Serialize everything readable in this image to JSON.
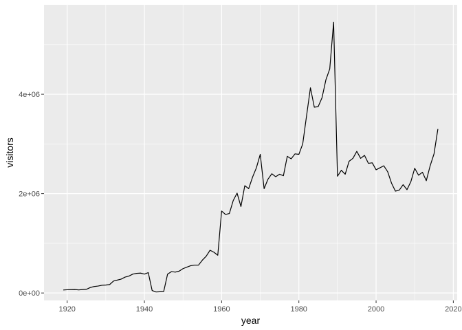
{
  "chart_data": {
    "type": "line",
    "xlabel": "year",
    "ylabel": "visitors",
    "xlim": [
      1914,
      2021
    ],
    "ylim": [
      -150000,
      5800000
    ],
    "x_ticks": [
      1920,
      1940,
      1960,
      1980,
      2000,
      2020
    ],
    "x_tick_labels": [
      "1920",
      "1940",
      "1960",
      "1980",
      "2000",
      "2020"
    ],
    "y_ticks": [
      0,
      2000000,
      4000000
    ],
    "y_tick_labels": [
      "0e+00",
      "2e+06",
      "4e+06"
    ],
    "grid": true,
    "colors": {
      "panel": "#ebebeb",
      "grid": "#ffffff",
      "line": "#000000"
    },
    "series": [
      {
        "x": [
          1919,
          1920,
          1921,
          1922,
          1923,
          1924,
          1925,
          1926,
          1927,
          1928,
          1929,
          1930,
          1931,
          1932,
          1933,
          1934,
          1935,
          1936,
          1937,
          1938,
          1939,
          1940,
          1941,
          1942,
          1943,
          1944,
          1945,
          1946,
          1947,
          1948,
          1949,
          1950,
          1951,
          1952,
          1953,
          1954,
          1955,
          1956,
          1957,
          1958,
          1959,
          1960,
          1961,
          1962,
          1963,
          1964,
          1965,
          1966,
          1967,
          1968,
          1969,
          1970,
          1971,
          1972,
          1973,
          1974,
          1975,
          1976,
          1977,
          1978,
          1979,
          1980,
          1981,
          1982,
          1983,
          1984,
          1985,
          1986,
          1987,
          1988,
          1989,
          1990,
          1991,
          1992,
          1993,
          1994,
          1995,
          1996,
          1997,
          1998,
          1999,
          2000,
          2001,
          2002,
          2003,
          2004,
          2005,
          2006,
          2007,
          2008,
          2009,
          2010,
          2011,
          2012,
          2013,
          2014,
          2015,
          2016
        ],
        "values": [
          60000,
          65000,
          68000,
          70000,
          62000,
          70000,
          75000,
          110000,
          130000,
          140000,
          155000,
          160000,
          170000,
          240000,
          260000,
          280000,
          320000,
          340000,
          380000,
          395000,
          400000,
          380000,
          410000,
          50000,
          20000,
          25000,
          30000,
          380000,
          430000,
          420000,
          440000,
          490000,
          520000,
          550000,
          560000,
          560000,
          660000,
          740000,
          860000,
          820000,
          760000,
          1650000,
          1580000,
          1600000,
          1860000,
          2010000,
          1740000,
          2160000,
          2100000,
          2330000,
          2520000,
          2790000,
          2100000,
          2290000,
          2400000,
          2340000,
          2390000,
          2360000,
          2750000,
          2700000,
          2800000,
          2790000,
          3000000,
          3570000,
          4130000,
          3740000,
          3750000,
          3930000,
          4290000,
          4510000,
          5450000,
          2350000,
          2470000,
          2390000,
          2650000,
          2710000,
          2850000,
          2710000,
          2770000,
          2610000,
          2620000,
          2480000,
          2520000,
          2560000,
          2440000,
          2210000,
          2050000,
          2070000,
          2180000,
          2080000,
          2240000,
          2510000,
          2370000,
          2430000,
          2260000,
          2560000,
          2800000,
          3300000
        ]
      }
    ]
  }
}
